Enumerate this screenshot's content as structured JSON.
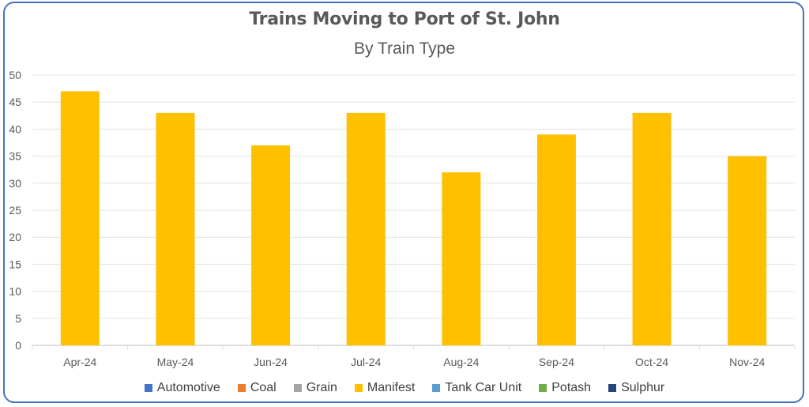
{
  "chart_data": {
    "type": "bar",
    "title": "Trains Moving to Port of St. John",
    "subtitle": "By Train Type",
    "categories": [
      "Apr-24",
      "May-24",
      "Jun-24",
      "Jul-24",
      "Aug-24",
      "Sep-24",
      "Oct-24",
      "Nov-24"
    ],
    "series": [
      {
        "name": "Automotive",
        "color": "#4472c4",
        "values": [
          0,
          0,
          0,
          0,
          0,
          0,
          0,
          0
        ]
      },
      {
        "name": "Coal",
        "color": "#ed7d31",
        "values": [
          0,
          0,
          0,
          0,
          0,
          0,
          0,
          0
        ]
      },
      {
        "name": "Grain",
        "color": "#a5a5a5",
        "values": [
          0,
          0,
          0,
          0,
          0,
          0,
          0,
          0
        ]
      },
      {
        "name": "Manifest",
        "color": "#ffc000",
        "values": [
          47,
          43,
          37,
          43,
          32,
          39,
          43,
          35
        ]
      },
      {
        "name": "Tank Car Unit",
        "color": "#5b9bd5",
        "values": [
          0,
          0,
          0,
          0,
          0,
          0,
          0,
          0
        ]
      },
      {
        "name": "Potash",
        "color": "#70ad47",
        "values": [
          0,
          0,
          0,
          0,
          0,
          0,
          0,
          0
        ]
      },
      {
        "name": "Sulphur",
        "color": "#264478",
        "values": [
          0,
          0,
          0,
          0,
          0,
          0,
          0,
          0
        ]
      }
    ],
    "yticks": [
      "0",
      "5",
      "10",
      "15",
      "20",
      "25",
      "30",
      "35",
      "40",
      "45",
      "50"
    ],
    "ylim": [
      0,
      50
    ],
    "grid": true,
    "legend": "bottom",
    "stacked": true
  }
}
